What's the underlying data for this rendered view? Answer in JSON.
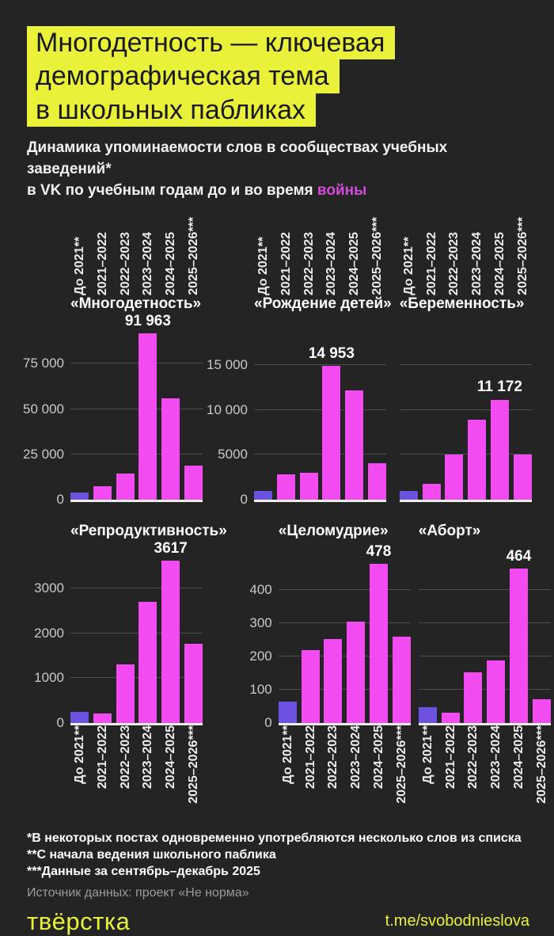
{
  "page": {
    "title_lines": [
      "Многодетность — ключевая",
      "демографическая тема",
      "в школьных пабликах"
    ],
    "subtitle_line1": "Динамика упоминаемости слов в сообществах учебных заведений*",
    "subtitle_line2_prefix": "в VK по учебным годам до и во время ",
    "subtitle_highlight": "войны"
  },
  "colors": {
    "background": "#242424",
    "accent_yellow": "#e9f239",
    "bar_war": "#f14bf1",
    "bar_prewar": "#6d51e1",
    "highlight_text": "#d24bdb",
    "gridline": "#4e4e4e",
    "axis_line": "#f0f0f0",
    "tick_text": "#c9c9c9"
  },
  "chart_data": {
    "type": "bar",
    "title": "Динамика упоминаемости слов в сообществах учебных заведений в VK по учебным годам до и во время войны",
    "categories": [
      "До 2021**",
      "2021–2022",
      "2022–2023",
      "2023–2024",
      "2024–2025",
      "2025–2026***"
    ],
    "legend": "первый столбец (До 2021**) — фиолетовый, остальные — маджента",
    "charts": [
      {
        "title": "«Многодетность»",
        "values": [
          4000,
          7500,
          14500,
          91963,
          56000,
          19000
        ],
        "peak_index": 3,
        "peak_label": "91 963",
        "ylim": 94000,
        "ticks": [
          0,
          25000,
          50000,
          75000
        ],
        "tick_labels": [
          "0",
          "25 000",
          "50 000",
          "75 000"
        ],
        "show_tick_labels": true,
        "labels_position": "top"
      },
      {
        "title": "«Рождение детей»",
        "values": [
          950,
          2800,
          3000,
          14953,
          12200,
          4100
        ],
        "peak_index": 3,
        "peak_label": "14 953",
        "ylim": 19000,
        "ticks": [
          0,
          5000,
          10000,
          15000
        ],
        "tick_labels": [
          "0",
          "5000",
          "10 000",
          "15 000"
        ],
        "show_tick_labels": true,
        "labels_position": "top"
      },
      {
        "title": "«Беременность»",
        "values": [
          1000,
          1800,
          5000,
          8900,
          11172,
          5000
        ],
        "peak_index": 4,
        "peak_label": "11 172",
        "ylim": 19000,
        "ticks": [
          0,
          5000,
          10000,
          15000
        ],
        "tick_labels": [],
        "show_tick_labels": false,
        "labels_position": "top"
      },
      {
        "title": "«Репродуктивность»",
        "values": [
          250,
          220,
          1300,
          2700,
          3617,
          1760
        ],
        "peak_index": 4,
        "peak_label": "3617",
        "ylim": 3800,
        "ticks": [
          0,
          1000,
          2000,
          3000
        ],
        "tick_labels": [
          "0",
          "1000",
          "2000",
          "3000"
        ],
        "show_tick_labels": true,
        "labels_position": "bottom"
      },
      {
        "title": "«Целомудрие»",
        "values": [
          65,
          220,
          253,
          305,
          478,
          260
        ],
        "peak_index": 4,
        "peak_label": "478",
        "ylim": 512,
        "ticks": [
          0,
          100,
          200,
          300,
          400
        ],
        "tick_labels": [
          "0",
          "100",
          "200",
          "300",
          "400"
        ],
        "show_tick_labels": true,
        "labels_position": "bottom"
      },
      {
        "title": "«Аборт»",
        "values": [
          48,
          30,
          152,
          188,
          464,
          72
        ],
        "peak_index": 4,
        "peak_label": "464",
        "ylim": 512,
        "ticks": [
          0,
          100,
          200,
          300,
          400
        ],
        "tick_labels": [],
        "show_tick_labels": false,
        "labels_position": "bottom"
      }
    ]
  },
  "footnotes": [
    "*В некоторых постах одновременно употребляются несколько слов из списка",
    "**С начала ведения школьного паблика",
    "***Данные за сентябрь–декабрь 2025"
  ],
  "source": "Источник данных: проект «Не норма»",
  "footer": {
    "logo": "твёрстка",
    "link": "t.me/svobodnieslova"
  }
}
